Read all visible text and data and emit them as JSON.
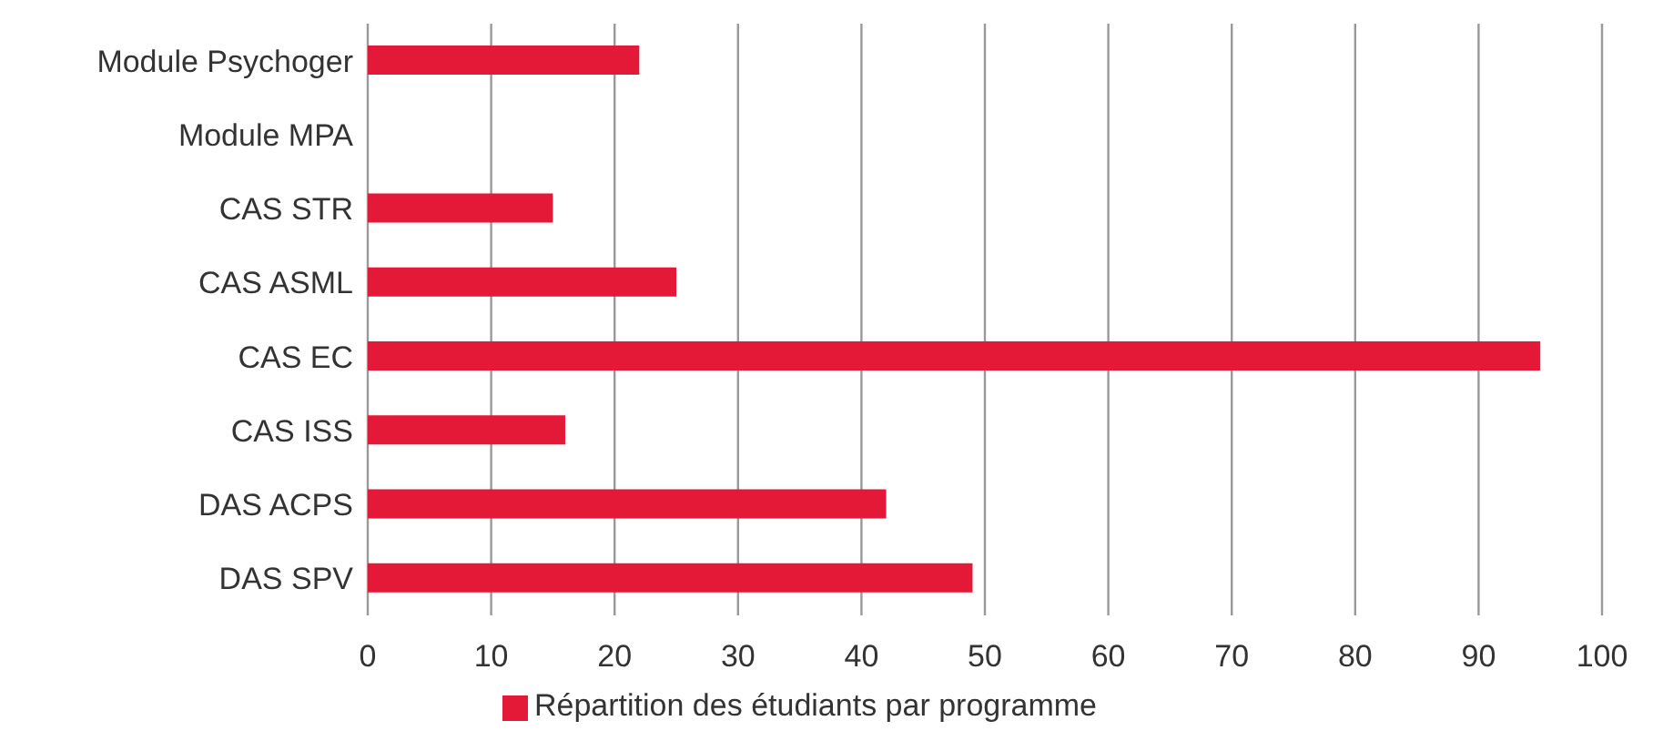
{
  "chart_data": {
    "type": "bar",
    "orientation": "horizontal",
    "categories": [
      "Module Psychoger",
      "Module MPA",
      "CAS STR",
      "CAS ASML",
      "CAS EC",
      "CAS ISS",
      "DAS ACPS",
      "DAS SPV"
    ],
    "series": [
      {
        "name": "Répartition des étudiants par programme",
        "color": "#e31937",
        "values": [
          22,
          0,
          15,
          25,
          95,
          16,
          42,
          49
        ]
      }
    ],
    "xlim": [
      0,
      100
    ],
    "xticks": [
      0,
      10,
      20,
      30,
      40,
      50,
      60,
      70,
      80,
      90,
      100
    ],
    "grid": "x",
    "legend": "bottom"
  }
}
